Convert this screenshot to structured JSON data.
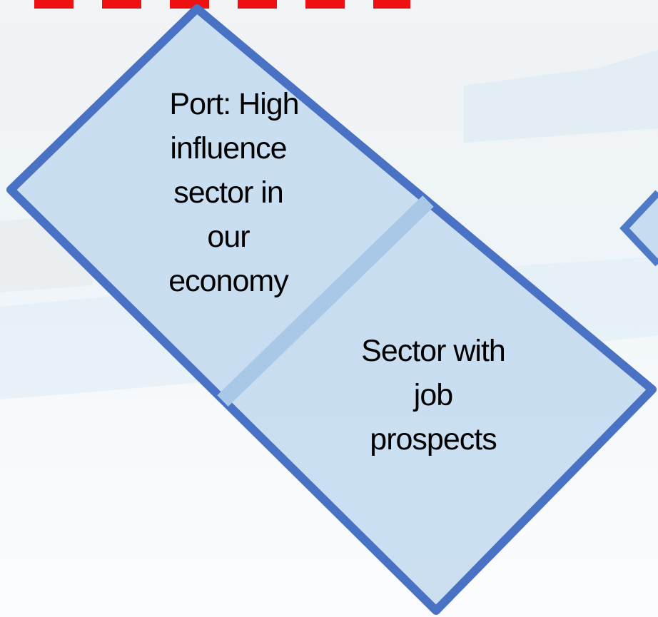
{
  "diagram": {
    "panels": [
      {
        "lines": [
          "Port: High",
          "influence",
          "sector in",
          "our",
          "economy"
        ]
      },
      {
        "lines": [
          "Sector with",
          "job",
          "prospects"
        ]
      }
    ]
  }
}
